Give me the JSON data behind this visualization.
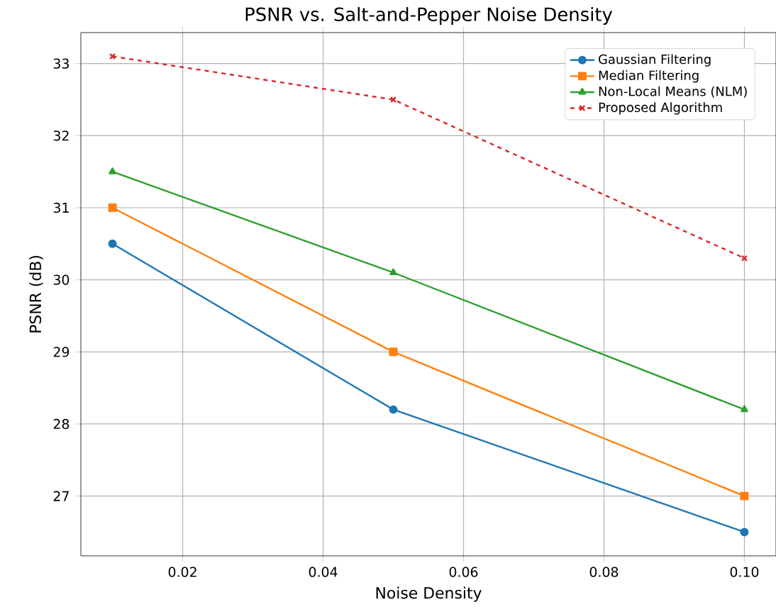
{
  "chart_data": {
    "type": "line",
    "title": "PSNR vs. Salt-and-Pepper Noise Density",
    "xlabel": "Noise Density",
    "ylabel": "PSNR (dB)",
    "x": [
      0.01,
      0.05,
      0.1
    ],
    "series": [
      {
        "name": "Gaussian Filtering",
        "color": "#1f77b4",
        "marker": "circle",
        "line_style": "solid",
        "values": [
          30.5,
          28.2,
          26.5
        ]
      },
      {
        "name": "Median Filtering",
        "color": "#ff7f0e",
        "marker": "square",
        "line_style": "solid",
        "values": [
          31.0,
          29.0,
          27.0
        ]
      },
      {
        "name": "Non-Local Means (NLM)",
        "color": "#2ca02c",
        "marker": "triangle",
        "line_style": "solid",
        "values": [
          31.5,
          30.1,
          28.2
        ]
      },
      {
        "name": "Proposed Algorithm",
        "color": "#d62728",
        "marker": "cross",
        "line_style": "dashed",
        "values": [
          33.1,
          32.5,
          30.3
        ]
      }
    ],
    "xlim": [
      0.0055,
      0.1045
    ],
    "ylim": [
      26.17,
      33.43
    ],
    "xticks": [
      {
        "value": 0.02,
        "label": "0.02"
      },
      {
        "value": 0.04,
        "label": "0.04"
      },
      {
        "value": 0.06,
        "label": "0.06"
      },
      {
        "value": 0.08,
        "label": "0.08"
      },
      {
        "value": 0.1,
        "label": "0.10"
      }
    ],
    "yticks": [
      27,
      28,
      29,
      30,
      31,
      32,
      33
    ],
    "grid": true,
    "legend": "top right"
  }
}
